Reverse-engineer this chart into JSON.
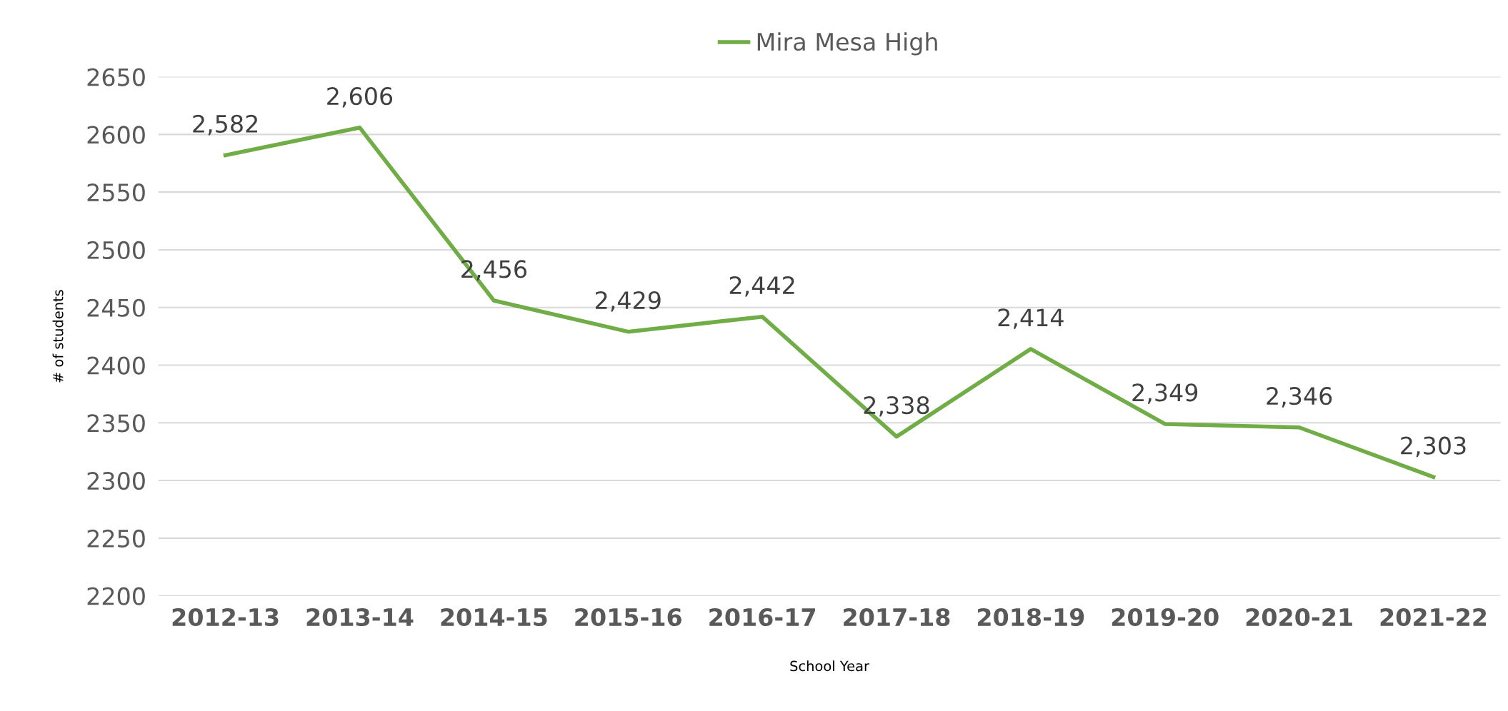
{
  "chart_data": {
    "type": "line",
    "xlabel": "School Year",
    "ylabel": "# of students",
    "categories": [
      "2012-13",
      "2013-14",
      "2014-15",
      "2015-16",
      "2016-17",
      "2017-18",
      "2018-19",
      "2019-20",
      "2020-21",
      "2021-22"
    ],
    "series": [
      {
        "name": "Mira Mesa High",
        "color": "#70ad47",
        "values": [
          2582,
          2606,
          2456,
          2429,
          2442,
          2338,
          2414,
          2349,
          2346,
          2303
        ],
        "value_labels": [
          "2,582",
          "2,606",
          "2,456",
          "2,429",
          "2,442",
          "2,338",
          "2,414",
          "2,349",
          "2,346",
          "2,303"
        ]
      }
    ],
    "ylim": [
      2200,
      2650
    ],
    "yticks": [
      2200,
      2250,
      2300,
      2350,
      2400,
      2450,
      2500,
      2550,
      2600,
      2650
    ],
    "grid": "y",
    "legend": "top",
    "marker": "none",
    "line_style": "solid"
  }
}
